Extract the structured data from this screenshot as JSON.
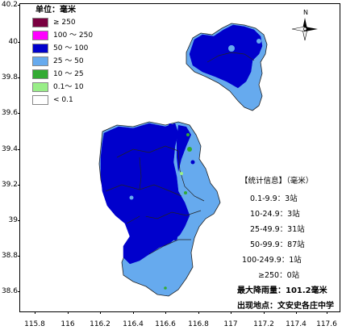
{
  "axes": {
    "y_ticks": [
      "40.2",
      "40",
      "39.8",
      "39.6",
      "39.4",
      "39.2",
      "39",
      "38.8",
      "38.6"
    ],
    "x_ticks": [
      "115.8",
      "116",
      "116.2",
      "116.4",
      "116.6",
      "116.8",
      "117",
      "117.2",
      "117.4",
      "117.6"
    ]
  },
  "legend": {
    "title": "单位：毫米",
    "items": [
      {
        "label": "≥ 250",
        "color": "#7a0040"
      },
      {
        "label": "100 ～ 250",
        "color": "#ff00ff"
      },
      {
        "label": "50 ～ 100",
        "color": "#0000cc"
      },
      {
        "label": "25 ～ 50",
        "color": "#66aaee"
      },
      {
        "label": "10 ～ 25",
        "color": "#33aa33"
      },
      {
        "label": "0.1～ 10",
        "color": "#99ee88"
      },
      {
        "label": "< 0.1",
        "color": "#ffffff"
      }
    ]
  },
  "north_arrow": {
    "label": "N"
  },
  "stats": {
    "title": "【统计信息】（毫米）",
    "rows": [
      "0.1-9.9：3站",
      "10-24.9：3站",
      "25-49.9：31站",
      "50-99.9：87站",
      "100-249.9：1站",
      "≥250：0站"
    ],
    "max_label": "最大降雨量：101.2毫米",
    "location_label": "出现地点：文安史各庄中学"
  },
  "colors": {
    "heavy": "#0000cc",
    "moderate": "#66aaee",
    "light": "#33aa33",
    "very_light": "#99ee88"
  }
}
